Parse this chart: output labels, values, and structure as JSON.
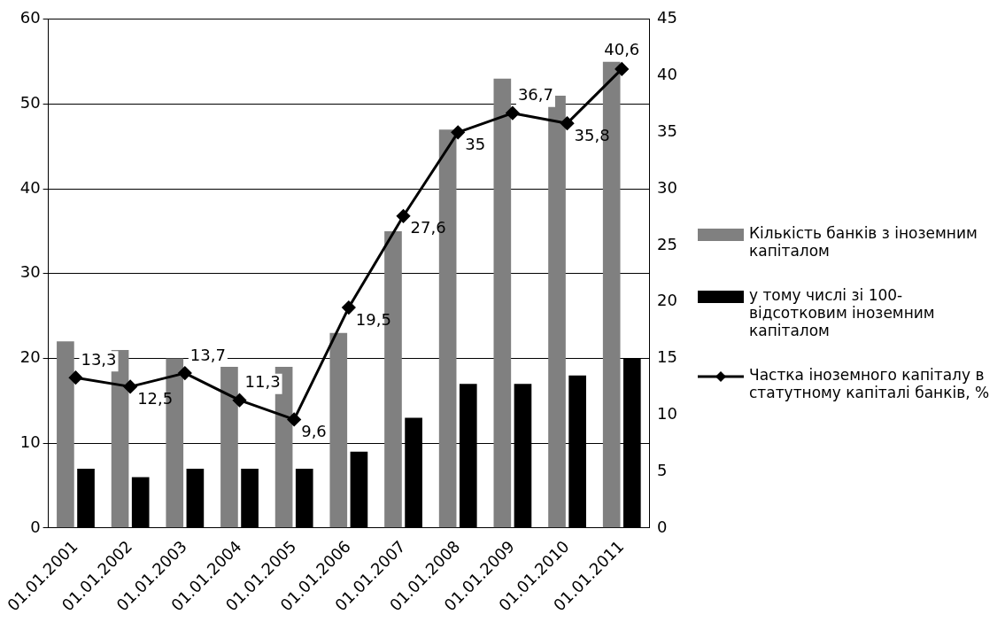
{
  "chart_data": {
    "type": "bar",
    "categories": [
      "01.01.2001",
      "01.01.2002",
      "01.01.2003",
      "01.01.2004",
      "01.01.2005",
      "01.01.2006",
      "01.01.2007",
      "01.01.2008",
      "01.01.2009",
      "01.01.2010",
      "01.01.2011"
    ],
    "series": [
      {
        "name": "Кількість банків з іноземним капіталом",
        "color": "#808080",
        "values": [
          22,
          21,
          20,
          19,
          19,
          23,
          35,
          47,
          53,
          51,
          55
        ]
      },
      {
        "name": "у тому числі зі 100-відсотковим іноземним капіталом",
        "color": "#000000",
        "values": [
          7,
          6,
          7,
          7,
          7,
          9,
          13,
          17,
          17,
          18,
          20
        ]
      },
      {
        "name": "Частка іноземного капіталу в статутному капіталі банків, %",
        "type": "line",
        "axis": "y2",
        "color": "#000000",
        "marker": "diamond",
        "values": [
          13.3,
          12.5,
          13.7,
          11.3,
          9.6,
          19.5,
          27.6,
          35,
          36.7,
          35.8,
          40.6
        ],
        "value_labels": [
          "13,3",
          "12,5",
          "13,7",
          "11,3",
          "9,6",
          "19,5",
          "27,6",
          "35",
          "36,7",
          "35,8",
          "40,6"
        ]
      }
    ],
    "ylim": [
      0,
      60
    ],
    "yticks": [
      0,
      10,
      20,
      30,
      40,
      50,
      60
    ],
    "y2lim": [
      0,
      45
    ],
    "y2ticks": [
      0,
      5,
      10,
      15,
      20,
      25,
      30,
      35,
      40,
      45
    ],
    "grid": "y",
    "legend": "right"
  }
}
